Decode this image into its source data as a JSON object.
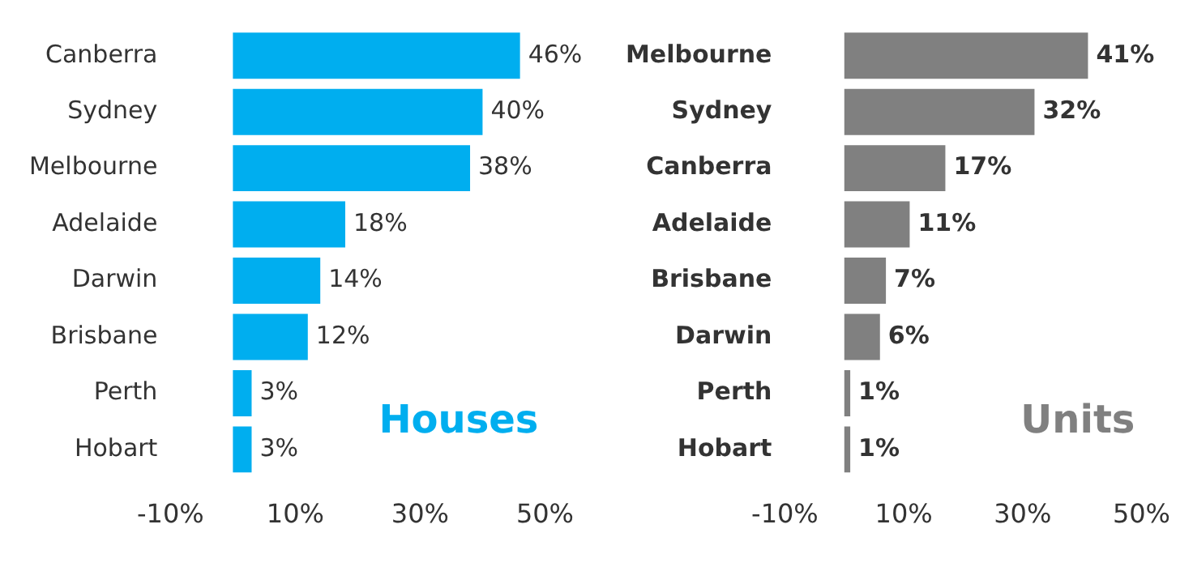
{
  "chart_data": [
    {
      "type": "bar",
      "orientation": "horizontal",
      "categories": [
        "Canberra",
        "Sydney",
        "Melbourne",
        "Adelaide",
        "Darwin",
        "Brisbane",
        "Perth",
        "Hobart"
      ],
      "series": [
        {
          "color": "#00aeef",
          "values": [
            46,
            40,
            38,
            18,
            14,
            12,
            3,
            3
          ],
          "value_labels": [
            "46%",
            "40%",
            "38%",
            "18%",
            "14%",
            "12%",
            "3%",
            "3%"
          ]
        }
      ],
      "xlim": [
        -10,
        50
      ],
      "xticks": [
        {
          "value": -10,
          "label": "-10%"
        },
        {
          "value": 10,
          "label": "10%"
        },
        {
          "value": 30,
          "label": "30%"
        },
        {
          "value": 50,
          "label": "50%"
        }
      ],
      "grid": false,
      "legend": false,
      "annotations": [
        "Houses"
      ]
    },
    {
      "type": "bar",
      "orientation": "horizontal",
      "categories": [
        "Melbourne",
        "Sydney",
        "Canberra",
        "Adelaide",
        "Brisbane",
        "Darwin",
        "Perth",
        "Hobart"
      ],
      "series": [
        {
          "color": "#808080",
          "values": [
            41,
            32,
            17,
            11,
            7,
            6,
            1,
            1
          ],
          "value_labels": [
            "41%",
            "32%",
            "17%",
            "11%",
            "7%",
            "6%",
            "1%",
            "1%"
          ]
        }
      ],
      "xlim": [
        -10,
        50
      ],
      "xticks": [
        {
          "value": -10,
          "label": "-10%"
        },
        {
          "value": 10,
          "label": "10%"
        },
        {
          "value": 30,
          "label": "30%"
        },
        {
          "value": 50,
          "label": "50%"
        }
      ],
      "grid": false,
      "legend": false,
      "annotations": [
        "Units"
      ]
    }
  ]
}
